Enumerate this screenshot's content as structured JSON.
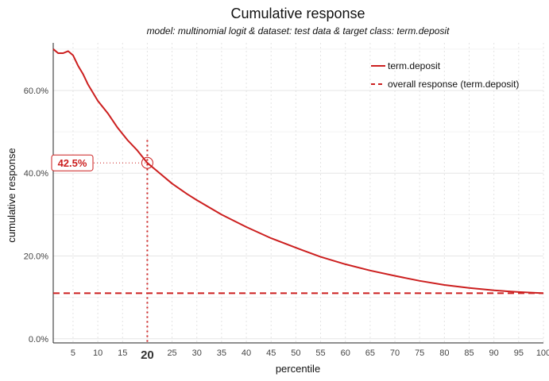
{
  "chart_data": {
    "type": "line",
    "title": "Cumulative response",
    "subtitle": "model: multinomial logit  &  dataset: test data  &  target class: term.deposit",
    "xlabel": "percentile",
    "ylabel": "cumulative response",
    "xlim": [
      1,
      100
    ],
    "ylim": [
      -0.01,
      0.715
    ],
    "x_ticks": [
      5,
      10,
      15,
      20,
      25,
      30,
      35,
      40,
      45,
      50,
      55,
      60,
      65,
      70,
      75,
      80,
      85,
      90,
      95,
      100
    ],
    "x_tick_labels": [
      "5",
      "10",
      "15",
      "20",
      "25",
      "30",
      "35",
      "40",
      "45",
      "50",
      "55",
      "60",
      "65",
      "70",
      "75",
      "80",
      "85",
      "90",
      "95",
      "100"
    ],
    "y_ticks": [
      0,
      0.2,
      0.4,
      0.6
    ],
    "y_tick_labels": [
      "0.0%",
      "20.0%",
      "40.0%",
      "60.0%"
    ],
    "grid": true,
    "legend_position": "top-right",
    "series": [
      {
        "name": "term.deposit",
        "style": "solid",
        "color": "#cc1f1f",
        "x": [
          1,
          2,
          3,
          4,
          5,
          6,
          7,
          8,
          10,
          12,
          14,
          16,
          18,
          20,
          22,
          25,
          28,
          30,
          35,
          40,
          45,
          50,
          55,
          60,
          65,
          70,
          75,
          80,
          85,
          90,
          95,
          100
        ],
        "y": [
          0.7,
          0.69,
          0.69,
          0.695,
          0.685,
          0.66,
          0.64,
          0.615,
          0.575,
          0.545,
          0.51,
          0.48,
          0.455,
          0.425,
          0.405,
          0.375,
          0.35,
          0.335,
          0.3,
          0.27,
          0.243,
          0.22,
          0.198,
          0.18,
          0.165,
          0.152,
          0.14,
          0.13,
          0.123,
          0.117,
          0.113,
          0.11
        ]
      },
      {
        "name": "overall response (term.deposit)",
        "style": "dashed",
        "color": "#cc1f1f",
        "x": [
          1,
          100
        ],
        "y": [
          0.11,
          0.11
        ]
      }
    ],
    "highlight": {
      "x": 20,
      "y": 0.425,
      "label": "42.5%",
      "x_label": "20",
      "color": "#cc1f1f"
    }
  }
}
